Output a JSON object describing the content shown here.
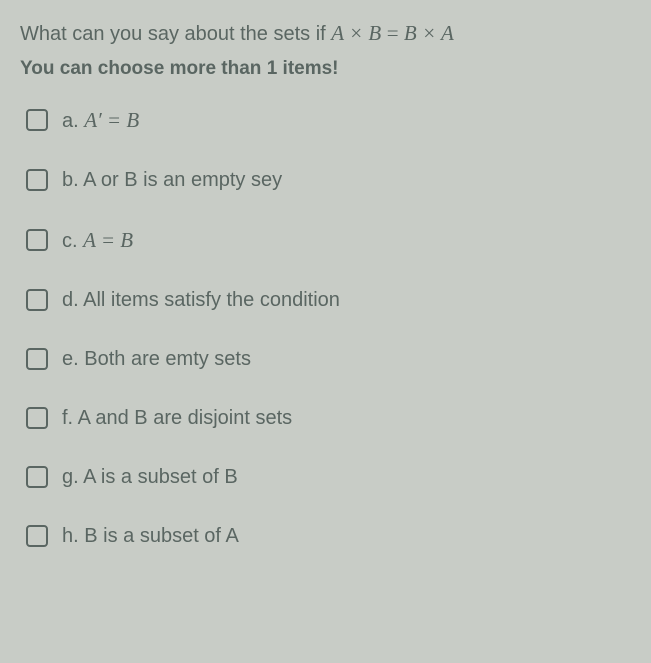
{
  "question": {
    "prefix": "What can you say about the sets if ",
    "math_lhs": "A × B",
    "equals": " = ",
    "math_rhs": "B × A"
  },
  "instruction": "You can choose more than 1 items!",
  "options": [
    {
      "letter": "a.",
      "text": "",
      "math": "A′ = B",
      "has_math": true
    },
    {
      "letter": "b.",
      "text": "A or B is an empty sey",
      "math": "",
      "has_math": false
    },
    {
      "letter": "c.",
      "text": "",
      "math": "A = B",
      "has_math": true
    },
    {
      "letter": "d.",
      "text": "All items satisfy the condition",
      "math": "",
      "has_math": false
    },
    {
      "letter": "e.",
      "text": "Both are emty sets",
      "math": "",
      "has_math": false
    },
    {
      "letter": "f.",
      "text": "A and B are disjoint sets",
      "math": "",
      "has_math": false
    },
    {
      "letter": "g.",
      "text": "A is a subset of B",
      "math": "",
      "has_math": false
    },
    {
      "letter": "h.",
      "text": "B is a subset of A",
      "math": "",
      "has_math": false
    }
  ],
  "colors": {
    "background": "#c8ccc6",
    "text": "#5a6662",
    "checkbox_border": "#5a6662"
  }
}
